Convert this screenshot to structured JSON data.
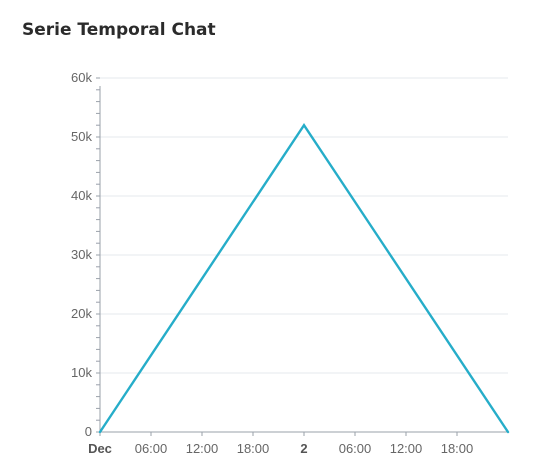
{
  "panel": {
    "title": "Serie Temporal Chat"
  },
  "colors": {
    "series": "#26adc9",
    "grid": "#e6e8ee",
    "axis": "#9aa0aa",
    "tick_text": "#666666"
  },
  "chart_data": {
    "type": "line",
    "title": "Serie Temporal Chat",
    "xlabel": "",
    "ylabel": "",
    "ylim": [
      0,
      60000
    ],
    "xlim": [
      "Dec 1 00:00",
      "Dec 2 24:00"
    ],
    "grid": true,
    "legend": "none",
    "y_ticks": [
      {
        "value": 0,
        "label": "0"
      },
      {
        "value": 10000,
        "label": "10k"
      },
      {
        "value": 20000,
        "label": "20k"
      },
      {
        "value": 30000,
        "label": "30k"
      },
      {
        "value": 40000,
        "label": "40k"
      },
      {
        "value": 50000,
        "label": "50k"
      },
      {
        "value": 60000,
        "label": "60k"
      }
    ],
    "x_ticks": [
      {
        "hours": 0,
        "label": "Dec",
        "bold": true
      },
      {
        "hours": 6,
        "label": "06:00",
        "bold": false
      },
      {
        "hours": 12,
        "label": "12:00",
        "bold": false
      },
      {
        "hours": 18,
        "label": "18:00",
        "bold": false
      },
      {
        "hours": 24,
        "label": "2",
        "bold": true
      },
      {
        "hours": 30,
        "label": "06:00",
        "bold": false
      },
      {
        "hours": 36,
        "label": "12:00",
        "bold": false
      },
      {
        "hours": 42,
        "label": "18:00",
        "bold": false
      }
    ],
    "series": [
      {
        "x": [
          "Dec 1 00:00",
          "Dec 2 00:00",
          "Dec 3 00:00"
        ],
        "y": [
          0,
          52000,
          0
        ]
      }
    ]
  }
}
